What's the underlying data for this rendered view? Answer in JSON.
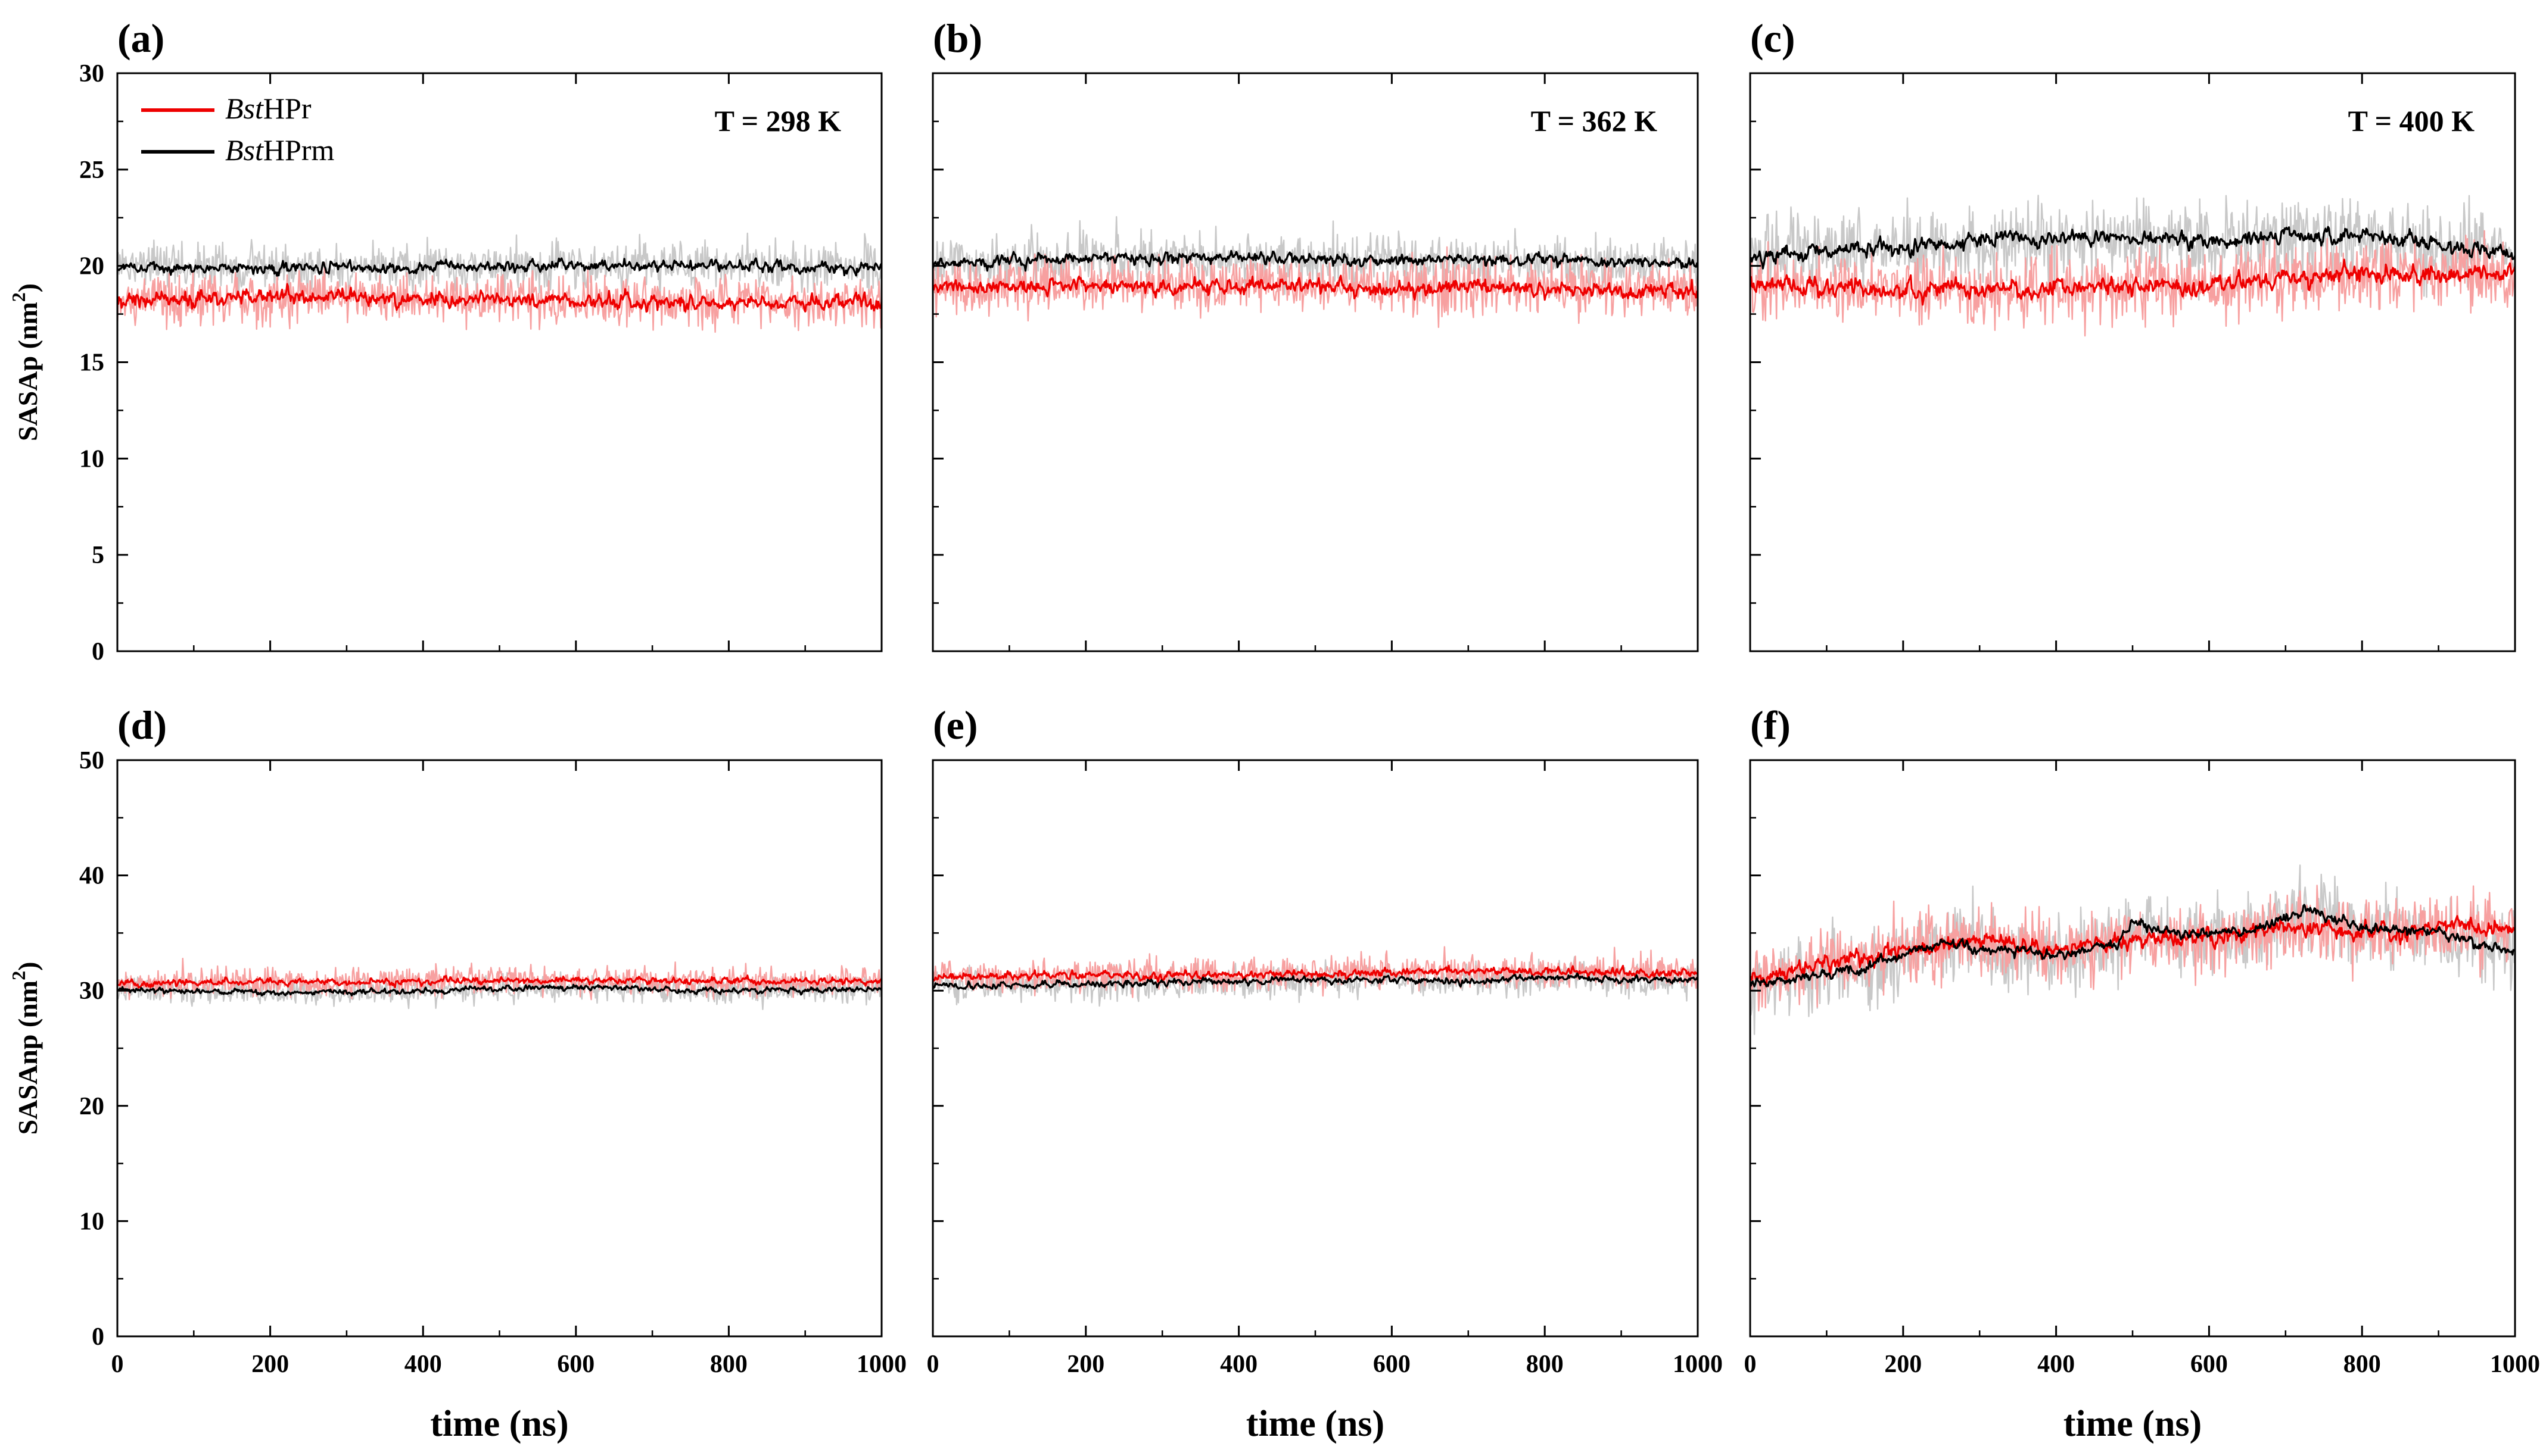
{
  "chart_data": {
    "type": "line",
    "colors": {
      "BstHPr": "#ee0000",
      "BstHPr_raw": "#f7a0a0",
      "BstHPrm": "#000000",
      "BstHPrm_raw": "#c8c8c8"
    },
    "legend": {
      "placement": "top-left",
      "entries": [
        {
          "italic": "Bst",
          "normal": "HPr",
          "series": "BstHPr"
        },
        {
          "italic": "Bst",
          "normal": "HPrm",
          "series": "BstHPrm"
        }
      ]
    },
    "rows": [
      {
        "ylabel_main": "SASAp (nm",
        "ylabel_sup": "2",
        "ylabel_close": ")",
        "ylim": [
          0,
          30
        ],
        "yticks": [
          0,
          5,
          10,
          15,
          20,
          25,
          30
        ]
      },
      {
        "ylabel_main": "SASAnp (nm",
        "ylabel_sup": "2",
        "ylabel_close": ")",
        "ylim": [
          0,
          50
        ],
        "yticks": [
          0,
          10,
          20,
          30,
          40,
          50
        ]
      }
    ],
    "xlim": [
      0,
      1000
    ],
    "xticks": [
      0,
      200,
      400,
      600,
      800,
      1000
    ],
    "xlabel": "time (ns)",
    "panels": [
      {
        "label": "(a)",
        "row": 0,
        "col": 0,
        "temperature": "T = 298 K",
        "series": [
          {
            "name": "BstHPr",
            "mean": [
              [
                0,
                18.2
              ],
              [
                200,
                18.4
              ],
              [
                400,
                18.3
              ],
              [
                600,
                18.2
              ],
              [
                800,
                18.1
              ],
              [
                1000,
                18.2
              ]
            ],
            "noise": 0.7,
            "raw_spread": 1.1
          },
          {
            "name": "BstHPrm",
            "mean": [
              [
                0,
                19.9
              ],
              [
                200,
                19.9
              ],
              [
                400,
                19.9
              ],
              [
                600,
                20.0
              ],
              [
                800,
                20.0
              ],
              [
                1000,
                19.9
              ]
            ],
            "noise": 0.5,
            "raw_spread": 1.0
          }
        ]
      },
      {
        "label": "(b)",
        "row": 0,
        "col": 1,
        "temperature": "T = 362 K",
        "series": [
          {
            "name": "BstHPr",
            "mean": [
              [
                0,
                18.8
              ],
              [
                200,
                19.0
              ],
              [
                400,
                19.0
              ],
              [
                600,
                18.9
              ],
              [
                800,
                18.8
              ],
              [
                1000,
                18.7
              ]
            ],
            "noise": 0.7,
            "raw_spread": 1.2
          },
          {
            "name": "BstHPrm",
            "mean": [
              [
                0,
                20.1
              ],
              [
                200,
                20.4
              ],
              [
                400,
                20.4
              ],
              [
                600,
                20.3
              ],
              [
                800,
                20.3
              ],
              [
                1000,
                20.1
              ]
            ],
            "noise": 0.5,
            "raw_spread": 1.1
          }
        ]
      },
      {
        "label": "(c)",
        "row": 0,
        "col": 2,
        "temperature": "T = 400 K",
        "series": [
          {
            "name": "BstHPr",
            "mean": [
              [
                0,
                19.0
              ],
              [
                200,
                18.8
              ],
              [
                400,
                18.8
              ],
              [
                600,
                19.0
              ],
              [
                800,
                19.6
              ],
              [
                1000,
                19.5
              ]
            ],
            "noise": 0.8,
            "raw_spread": 1.5
          },
          {
            "name": "BstHPrm",
            "mean": [
              [
                0,
                20.5
              ],
              [
                200,
                21.0
              ],
              [
                400,
                21.5
              ],
              [
                600,
                21.3
              ],
              [
                800,
                21.6
              ],
              [
                1000,
                20.6
              ]
            ],
            "noise": 0.7,
            "raw_spread": 1.6
          }
        ]
      },
      {
        "label": "(d)",
        "row": 1,
        "col": 0,
        "temperature": "",
        "series": [
          {
            "name": "BstHPr",
            "mean": [
              [
                0,
                30.6
              ],
              [
                200,
                30.8
              ],
              [
                400,
                30.8
              ],
              [
                600,
                30.9
              ],
              [
                800,
                30.8
              ],
              [
                1000,
                30.8
              ]
            ],
            "noise": 0.5,
            "raw_spread": 1.0
          },
          {
            "name": "BstHPrm",
            "mean": [
              [
                0,
                30.1
              ],
              [
                200,
                29.8
              ],
              [
                400,
                30.0
              ],
              [
                600,
                30.3
              ],
              [
                800,
                30.0
              ],
              [
                1000,
                30.1
              ]
            ],
            "noise": 0.4,
            "raw_spread": 0.9
          }
        ]
      },
      {
        "label": "(e)",
        "row": 1,
        "col": 1,
        "temperature": "",
        "series": [
          {
            "name": "BstHPr",
            "mean": [
              [
                0,
                31.2
              ],
              [
                200,
                31.3
              ],
              [
                400,
                31.4
              ],
              [
                600,
                31.6
              ],
              [
                800,
                31.7
              ],
              [
                1000,
                31.5
              ]
            ],
            "noise": 0.6,
            "raw_spread": 1.2
          },
          {
            "name": "BstHPrm",
            "mean": [
              [
                0,
                30.4
              ],
              [
                200,
                30.5
              ],
              [
                400,
                30.8
              ],
              [
                600,
                31.0
              ],
              [
                700,
                30.7
              ],
              [
                800,
                31.2
              ],
              [
                1000,
                30.8
              ]
            ],
            "noise": 0.5,
            "raw_spread": 1.1
          }
        ]
      },
      {
        "label": "(f)",
        "row": 1,
        "col": 2,
        "temperature": "",
        "series": [
          {
            "name": "BstHPr",
            "mean": [
              [
                0,
                31.0
              ],
              [
                200,
                33.5
              ],
              [
                300,
                34.5
              ],
              [
                400,
                33.5
              ],
              [
                500,
                34.5
              ],
              [
                600,
                34.5
              ],
              [
                700,
                35.5
              ],
              [
                800,
                35.0
              ],
              [
                900,
                35.5
              ],
              [
                1000,
                35.5
              ]
            ],
            "noise": 1.2,
            "raw_spread": 2.5
          },
          {
            "name": "BstHPrm",
            "mean": [
              [
                0,
                30.5
              ],
              [
                150,
                32.0
              ],
              [
                250,
                34.0
              ],
              [
                400,
                33.0
              ],
              [
                480,
                34.0
              ],
              [
                500,
                36.0
              ],
              [
                560,
                35.0
              ],
              [
                650,
                35.0
              ],
              [
                730,
                37.0
              ],
              [
                800,
                35.5
              ],
              [
                900,
                35.0
              ],
              [
                1000,
                33.5
              ]
            ],
            "noise": 0.8,
            "raw_spread": 2.8
          }
        ]
      }
    ]
  }
}
